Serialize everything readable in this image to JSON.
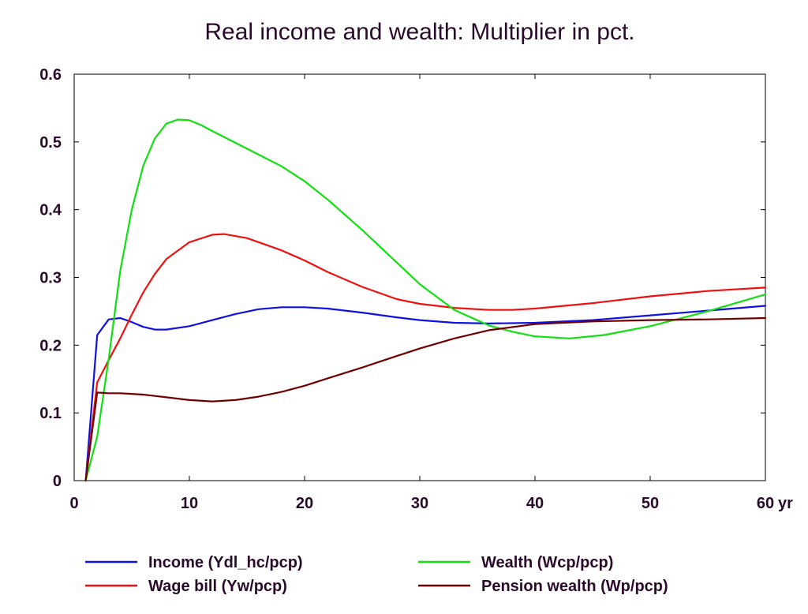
{
  "chart_data": {
    "type": "line",
    "title": "Real income and wealth: Multiplier in pct.",
    "xlabel": "",
    "ylabel": "",
    "x_unit": "yr",
    "xlim": [
      0,
      60
    ],
    "ylim": [
      0,
      0.6
    ],
    "x_ticks": [
      "0",
      "10",
      "20",
      "30",
      "40",
      "50",
      "60"
    ],
    "y_ticks": [
      "0",
      "0.1",
      "0.2",
      "0.3",
      "0.4",
      "0.5",
      "0.6"
    ],
    "grid": false,
    "legend_position": "bottom",
    "series": [
      {
        "name": "Income (Ydl_hc/pcp)",
        "color": "#1010e0",
        "x": [
          1,
          2,
          3,
          4,
          5,
          6,
          7,
          8,
          10,
          12,
          14,
          16,
          18,
          20,
          22,
          25,
          28,
          30,
          33,
          36,
          40,
          45,
          50,
          55,
          60
        ],
        "y": [
          0,
          0.215,
          0.238,
          0.24,
          0.234,
          0.227,
          0.223,
          0.223,
          0.228,
          0.237,
          0.246,
          0.253,
          0.256,
          0.256,
          0.254,
          0.248,
          0.241,
          0.237,
          0.233,
          0.232,
          0.233,
          0.237,
          0.244,
          0.251,
          0.258
        ]
      },
      {
        "name": "Wage bill (Yw/pcp)",
        "color": "#f01010",
        "x": [
          1,
          2,
          3,
          4,
          5,
          6,
          7,
          8,
          10,
          12,
          13,
          15,
          18,
          20,
          22,
          25,
          28,
          30,
          33,
          36,
          38,
          40,
          45,
          50,
          55,
          60
        ],
        "y": [
          0,
          0.145,
          0.178,
          0.21,
          0.245,
          0.278,
          0.305,
          0.327,
          0.352,
          0.363,
          0.364,
          0.358,
          0.34,
          0.325,
          0.308,
          0.286,
          0.268,
          0.261,
          0.255,
          0.252,
          0.252,
          0.254,
          0.262,
          0.272,
          0.28,
          0.285
        ]
      },
      {
        "name": "Wealth (Wcp/pcp)",
        "color": "#10e010",
        "x": [
          1,
          2,
          3,
          4,
          5,
          6,
          7,
          8,
          9,
          10,
          11,
          12,
          15,
          18,
          20,
          22,
          25,
          28,
          30,
          33,
          36,
          38,
          40,
          43,
          46,
          50,
          55,
          60
        ],
        "y": [
          0,
          0.065,
          0.18,
          0.31,
          0.4,
          0.465,
          0.505,
          0.527,
          0.533,
          0.532,
          0.525,
          0.516,
          0.49,
          0.464,
          0.442,
          0.415,
          0.37,
          0.322,
          0.29,
          0.252,
          0.229,
          0.22,
          0.213,
          0.21,
          0.215,
          0.228,
          0.25,
          0.275
        ]
      },
      {
        "name": "Pension wealth (Wp/pcp)",
        "color": "#700000",
        "x": [
          1,
          2,
          3,
          4,
          5,
          6,
          7,
          8,
          10,
          12,
          14,
          16,
          18,
          20,
          22,
          25,
          28,
          30,
          33,
          36,
          40,
          45,
          50,
          55,
          60
        ],
        "y": [
          0,
          0.13,
          0.129,
          0.129,
          0.128,
          0.127,
          0.125,
          0.123,
          0.119,
          0.117,
          0.119,
          0.124,
          0.131,
          0.14,
          0.151,
          0.167,
          0.184,
          0.195,
          0.21,
          0.222,
          0.231,
          0.235,
          0.237,
          0.238,
          0.24
        ]
      }
    ]
  }
}
